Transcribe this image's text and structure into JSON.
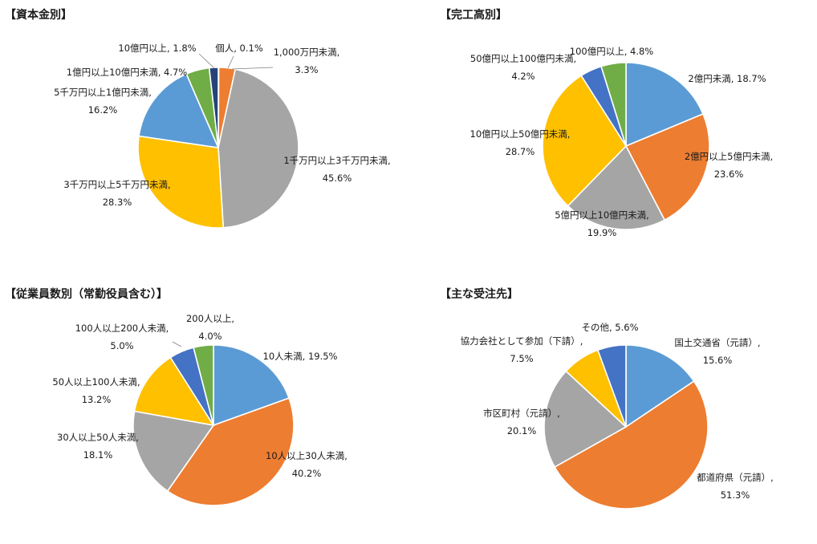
{
  "colors": {
    "blue": "#5B9BD5",
    "orange": "#ED7D31",
    "gray": "#A5A5A5",
    "yellow": "#FFC000",
    "dark_blue": "#4472C4",
    "green": "#70AD47"
  },
  "chart_data": [
    {
      "type": "pie",
      "title": "【資本金別】",
      "slices": [
        {
          "name": "個人",
          "value": 0.1,
          "label": [
            "個人, 0.1%"
          ],
          "color": "#4472C4"
        },
        {
          "name": "1,000万円未満",
          "value": 3.3,
          "label": [
            "1,000万円未満,",
            "3.3%"
          ],
          "color": "#ED7D31"
        },
        {
          "name": "1千万円以上3千万円未満",
          "value": 45.6,
          "label": [
            "1千万円以上3千万円未満,",
            "45.6%"
          ],
          "color": "#A5A5A5"
        },
        {
          "name": "3千万円以上5千万円未満",
          "value": 28.3,
          "label": [
            "3千万円以上5千万円未満,",
            "28.3%"
          ],
          "color": "#FFC000"
        },
        {
          "name": "5千万円以上1億円未満",
          "value": 16.2,
          "label": [
            "5千万円以上1億円未満,",
            "16.2%"
          ],
          "color": "#5B9BD5"
        },
        {
          "name": "1億円以上10億円未満",
          "value": 4.7,
          "label": [
            "1億円以上10億円未満, 4.7%"
          ],
          "color": "#70AD47"
        },
        {
          "name": "10億円以上",
          "value": 1.8,
          "label": [
            "10億円以上, 1.8%"
          ],
          "color": "#264478"
        }
      ]
    },
    {
      "type": "pie",
      "title": "【完工高別】",
      "slices": [
        {
          "name": "2億円未満",
          "value": 18.7,
          "label": [
            "2億円未満, 18.7%"
          ],
          "color": "#5B9BD5"
        },
        {
          "name": "2億円以上5億円未満",
          "value": 23.6,
          "label": [
            "2億円以上5億円未満,",
            "23.6%"
          ],
          "color": "#ED7D31"
        },
        {
          "name": "5億円以上10億円未満",
          "value": 19.9,
          "label": [
            "5億円以上10億円未満,",
            "19.9%"
          ],
          "color": "#A5A5A5"
        },
        {
          "name": "10億円以上50億円未満",
          "value": 28.7,
          "label": [
            "10億円以上50億円未満,",
            "28.7%"
          ],
          "color": "#FFC000"
        },
        {
          "name": "50億円以上100億円未満",
          "value": 4.2,
          "label": [
            "50億円以上100億円未満,",
            "4.2%"
          ],
          "color": "#4472C4"
        },
        {
          "name": "100億円以上",
          "value": 4.8,
          "label": [
            "100億円以上, 4.8%"
          ],
          "color": "#70AD47"
        }
      ]
    },
    {
      "type": "pie",
      "title": "【従業員数別（常勤役員含む）】",
      "slices": [
        {
          "name": "10人未満",
          "value": 19.5,
          "label": [
            "10人未満, 19.5%"
          ],
          "color": "#5B9BD5"
        },
        {
          "name": "10人以上30人未満",
          "value": 40.2,
          "label": [
            "10人以上30人未満,",
            "40.2%"
          ],
          "color": "#ED7D31"
        },
        {
          "name": "30人以上50人未満",
          "value": 18.1,
          "label": [
            "30人以上50人未満,",
            "18.1%"
          ],
          "color": "#A5A5A5"
        },
        {
          "name": "50人以上100人未満",
          "value": 13.2,
          "label": [
            "50人以上100人未満,",
            "13.2%"
          ],
          "color": "#FFC000"
        },
        {
          "name": "100人以上200人未満",
          "value": 5.0,
          "label": [
            "100人以上200人未満,",
            "5.0%"
          ],
          "color": "#4472C4"
        },
        {
          "name": "200人以上",
          "value": 4.0,
          "label": [
            "200人以上,",
            "4.0%"
          ],
          "color": "#70AD47"
        }
      ]
    },
    {
      "type": "pie",
      "title": "【主な受注先】",
      "slices": [
        {
          "name": "国土交通省（元請）",
          "value": 15.6,
          "label": [
            "国土交通省（元請）,",
            "15.6%"
          ],
          "color": "#5B9BD5"
        },
        {
          "name": "都道府県（元請）",
          "value": 51.3,
          "label": [
            "都道府県（元請）,",
            "51.3%"
          ],
          "color": "#ED7D31"
        },
        {
          "name": "市区町村（元請）",
          "value": 20.1,
          "label": [
            "市区町村（元請）,",
            "20.1%"
          ],
          "color": "#A5A5A5"
        },
        {
          "name": "協力会社として参加（下請）",
          "value": 7.5,
          "label": [
            "協力会社として参加（下請）,",
            "7.5%"
          ],
          "color": "#FFC000"
        },
        {
          "name": "その他",
          "value": 5.6,
          "label": [
            "その他, 5.6%"
          ],
          "color": "#4472C4"
        }
      ]
    }
  ]
}
